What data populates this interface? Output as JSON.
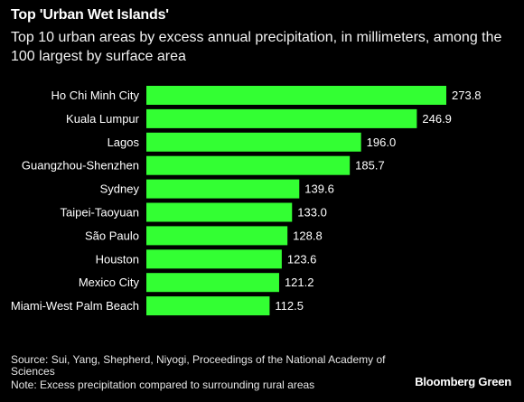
{
  "header": {
    "title": "Top 'Urban Wet Islands'",
    "subtitle": "Top 10 urban areas by excess annual precipitation, in millimeters, among the 100 largest by surface area"
  },
  "footer": {
    "source": "Source: Sui, Yang, Shepherd, Niyogi, Proceedings of the National Academy of Sciences",
    "note": "Note: Excess precipitation compared to surrounding rural areas",
    "brand": "Bloomberg Green"
  },
  "colors": {
    "background": "#000000",
    "bar": "#33ff33",
    "text": "#ffffff"
  },
  "chart_data": {
    "type": "bar",
    "orientation": "horizontal",
    "categories": [
      "Ho Chi Minh City",
      "Kuala Lumpur",
      "Lagos",
      "Guangzhou-Shenzhen",
      "Sydney",
      "Taipei-Taoyuan",
      "São Paulo",
      "Houston",
      "Mexico City",
      "Miami-West Palm Beach"
    ],
    "values": [
      273.8,
      246.9,
      196.0,
      185.7,
      139.6,
      133.0,
      128.8,
      123.6,
      121.2,
      112.5
    ],
    "value_labels": [
      "273.8",
      "246.9",
      "196.0",
      "185.7",
      "139.6",
      "133.0",
      "128.8",
      "123.6",
      "121.2",
      "112.5"
    ],
    "xlim": [
      0,
      273.8
    ],
    "grid": false,
    "legend": "none"
  }
}
